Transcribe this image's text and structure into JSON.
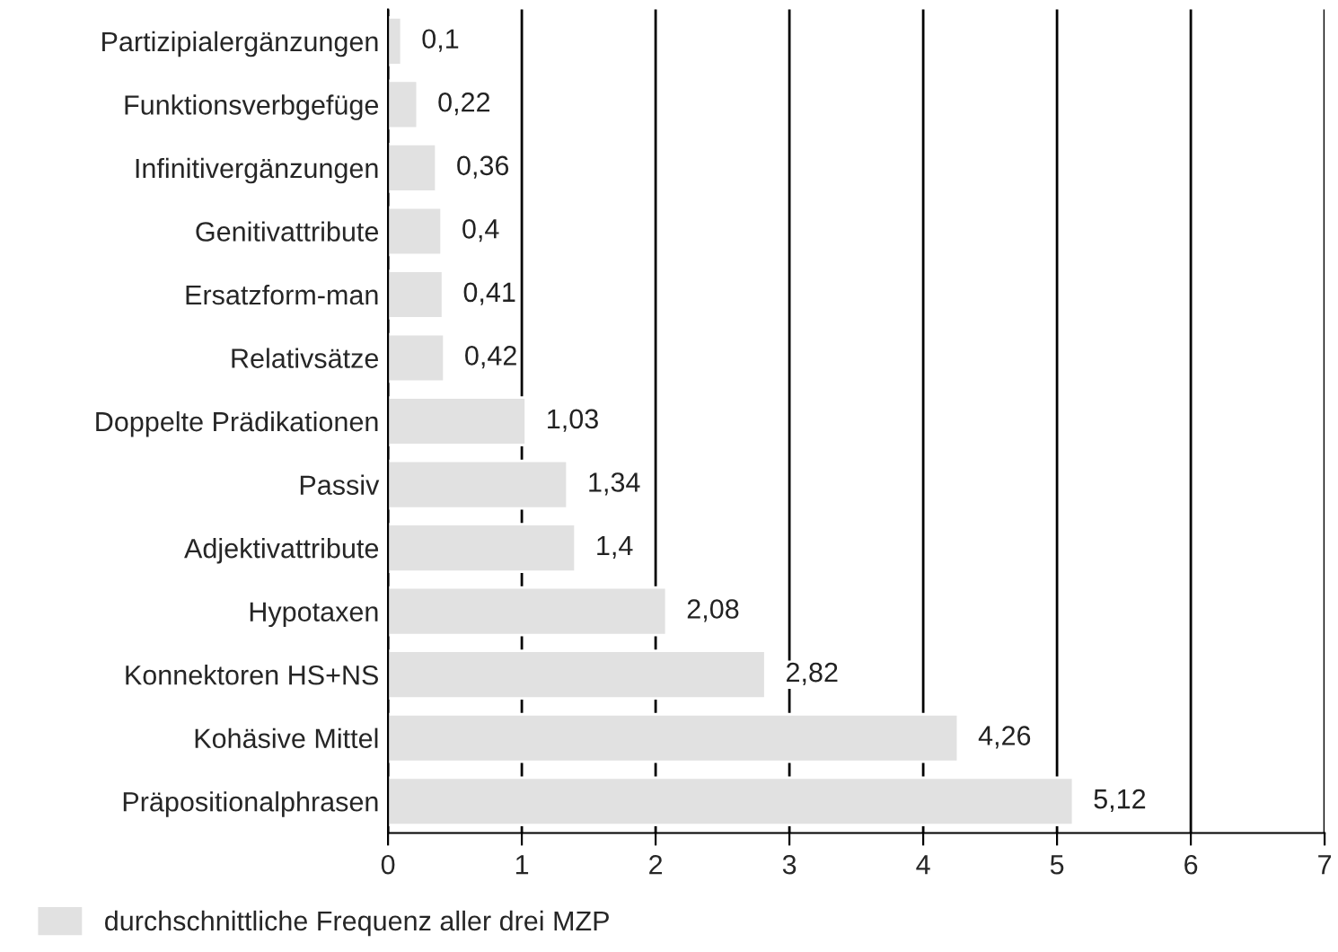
{
  "chart_data": {
    "type": "bar",
    "orientation": "horizontal",
    "categories": [
      "Partizipialergänzungen",
      "Funktionsverbgefüge",
      "Infinitivergänzungen",
      "Genitivattribute",
      "Ersatzform-man",
      "Relativsätze",
      "Doppelte Prädikationen",
      "Passiv",
      "Adjektivattribute",
      "Hypotaxen",
      "Konnektoren HS+NS",
      "Kohäsive Mittel",
      "Präpositionalphrasen"
    ],
    "series": [
      {
        "name": "durchschnittliche Frequenz aller drei MZP",
        "color": "#e1e1e1",
        "values": [
          0.1,
          0.22,
          0.36,
          0.4,
          0.41,
          0.42,
          1.03,
          1.34,
          1.4,
          2.08,
          2.82,
          4.26,
          5.12
        ],
        "value_labels": [
          "0,1",
          "0,22",
          "0,36",
          "0,4",
          "0,41",
          "0,42",
          "1,03",
          "1,34",
          "1,4",
          "2,08",
          "2,82",
          "4,26",
          "5,12"
        ]
      }
    ],
    "xlim": [
      0,
      7
    ],
    "xticks": [
      0,
      1,
      2,
      3,
      4,
      5,
      6,
      7
    ],
    "grid": "x",
    "legend": "bottom left"
  }
}
